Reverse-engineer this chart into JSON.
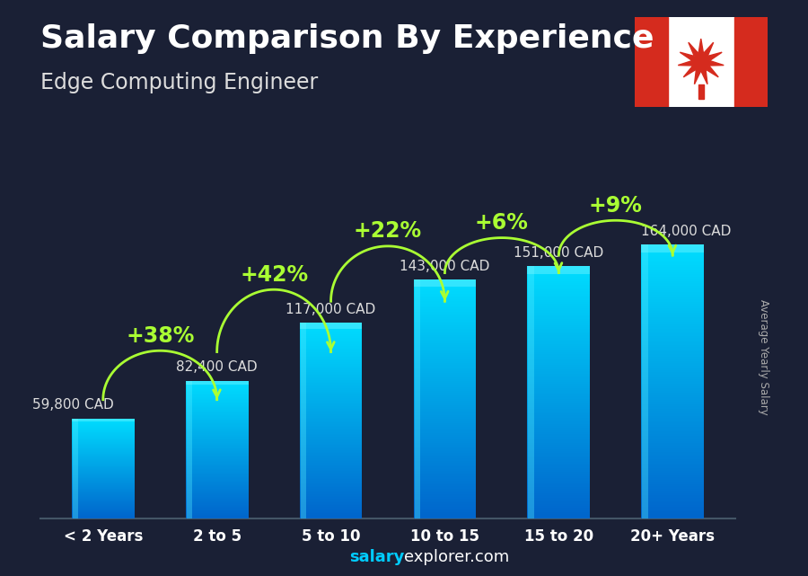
{
  "title": "Salary Comparison By Experience",
  "subtitle": "Edge Computing Engineer",
  "ylabel": "Average Yearly Salary",
  "categories": [
    "< 2 Years",
    "2 to 5",
    "5 to 10",
    "10 to 15",
    "15 to 20",
    "20+ Years"
  ],
  "values": [
    59800,
    82400,
    117000,
    143000,
    151000,
    164000
  ],
  "labels": [
    "59,800 CAD",
    "82,400 CAD",
    "117,000 CAD",
    "143,000 CAD",
    "151,000 CAD",
    "164,000 CAD"
  ],
  "pct_changes": [
    "+38%",
    "+42%",
    "+22%",
    "+6%",
    "+9%"
  ],
  "bg_color": "#1a2035",
  "title_color": "#ffffff",
  "subtitle_color": "#dddddd",
  "label_color": "#dddddd",
  "pct_color": "#aaff33",
  "arrow_color": "#aaff33",
  "watermark_salary": "#00ccff",
  "watermark_explorer": "#ffffff",
  "ylim": [
    0,
    200000
  ],
  "bar_width": 0.55,
  "title_fontsize": 26,
  "subtitle_fontsize": 17,
  "label_fontsize": 11,
  "pct_fontsize": 17,
  "tick_fontsize": 12
}
